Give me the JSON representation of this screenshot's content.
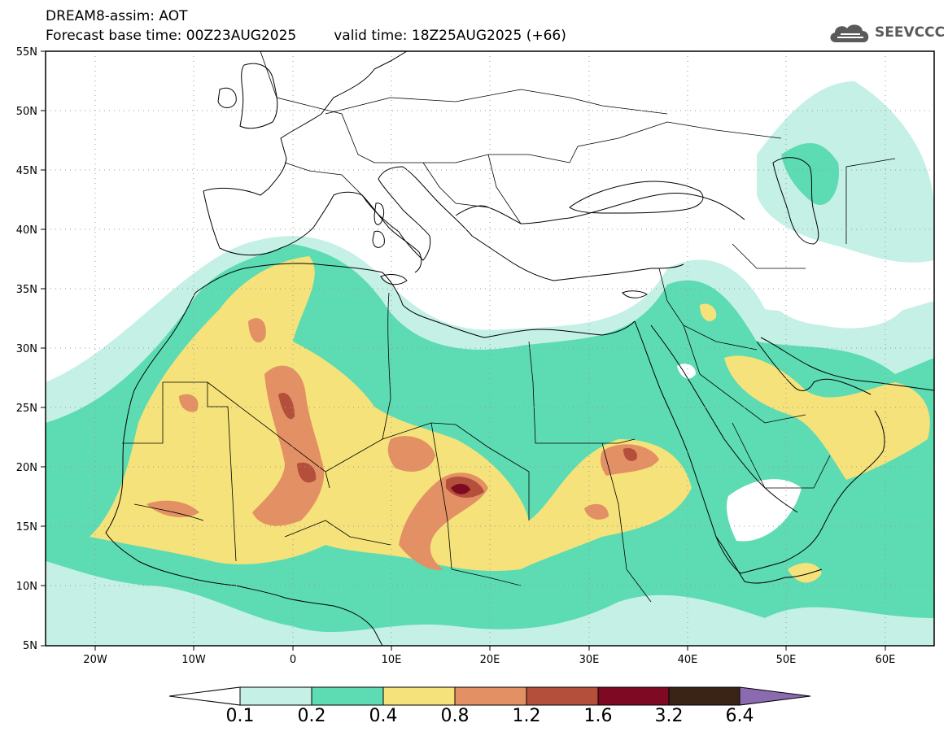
{
  "header": {
    "title": "DREAM8-assim: AOT",
    "base_time": "Forecast base time: 00Z23AUG2025",
    "valid_time": "valid time: 18Z25AUG2025 (+66)"
  },
  "logo": {
    "text": "SEEVCCC",
    "icon": "cloud-icon",
    "color": "#5a5a5a"
  },
  "map": {
    "lat_labels": [
      "55N",
      "50N",
      "45N",
      "40N",
      "35N",
      "30N",
      "25N",
      "20N",
      "15N",
      "10N",
      "5N"
    ],
    "lon_labels": [
      "20W",
      "10W",
      "0",
      "10E",
      "20E",
      "30E",
      "40E",
      "50E",
      "60E"
    ],
    "frame_color": "#000000",
    "coast_color": "#000000"
  },
  "colorbar": {
    "tick_labels": [
      "0.1",
      "0.2",
      "0.4",
      "0.8",
      "1.2",
      "1.6",
      "3.2",
      "6.4"
    ],
    "colors": {
      "below": "#ffffff",
      "0.1-0.2": "#c4f0e6",
      "0.2-0.4": "#5ddbb2",
      "0.4-0.8": "#f5e27a",
      "0.8-1.2": "#e39064",
      "1.2-1.6": "#b34f3a",
      "1.6-3.2": "#7d0a22",
      "3.2-6.4": "#3a2416",
      "above": "#8c6ab0"
    }
  }
}
